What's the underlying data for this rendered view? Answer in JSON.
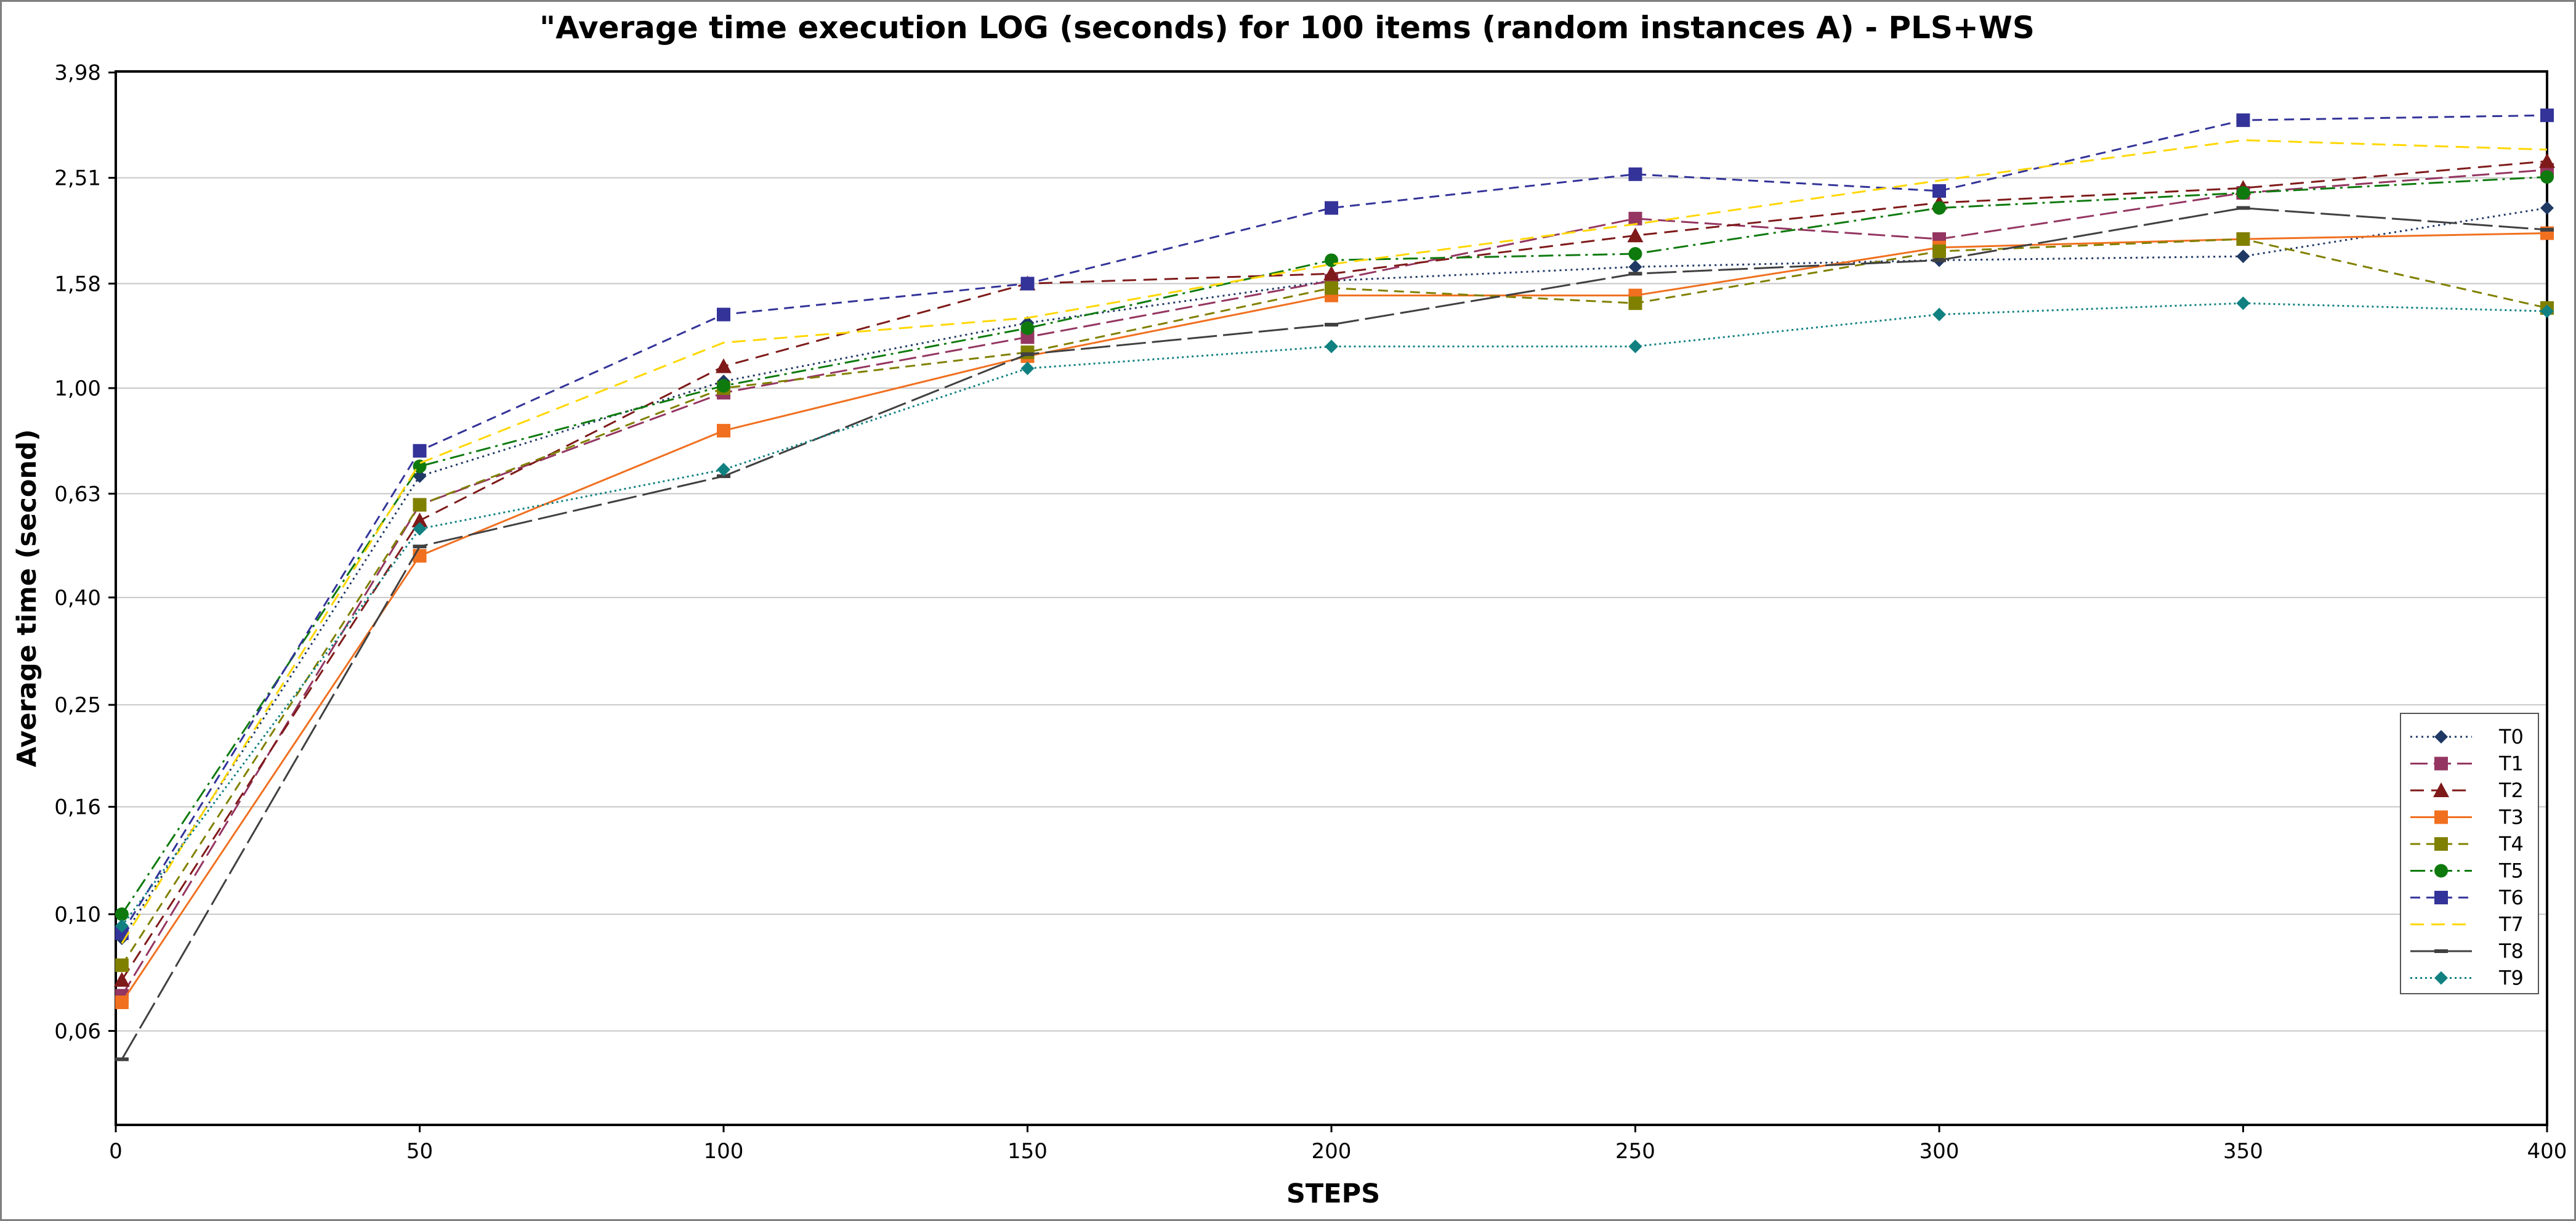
{
  "chart_data": {
    "type": "line",
    "title": "\"Average time execution LOG (seconds) for 100 items (random instances A) - PLS+WS",
    "xlabel": "STEPS",
    "ylabel": "Average time (second)",
    "y_scale": "log",
    "xlim": [
      0,
      400
    ],
    "x_ticks": [
      "0",
      "50",
      "100",
      "150",
      "200",
      "250",
      "300",
      "350",
      "400"
    ],
    "y_ticks": [
      "3,98",
      "2,51",
      "1,58",
      "1,00",
      "0,63",
      "0,40",
      "0,25",
      "0,16",
      "0,10",
      "0,06"
    ],
    "y_tick_values": [
      3.98,
      2.51,
      1.58,
      1.0,
      0.63,
      0.4,
      0.25,
      0.16,
      0.1,
      0.06
    ],
    "grid": true,
    "legend_position": "right",
    "x": [
      1,
      50,
      100,
      150,
      200,
      250,
      300,
      350,
      400
    ],
    "series": [
      {
        "name": "T0",
        "color": "#1f3864",
        "dash": "3,6",
        "marker": "diamond",
        "values": [
          0.09,
          0.68,
          1.03,
          1.33,
          1.6,
          1.7,
          1.75,
          1.78,
          2.2
        ]
      },
      {
        "name": "T1",
        "color": "#943661",
        "dash": "28,10",
        "marker": "square",
        "values": [
          0.07,
          0.6,
          0.98,
          1.25,
          1.6,
          2.1,
          1.92,
          2.35,
          2.6
        ]
      },
      {
        "name": "T2",
        "color": "#7f1a1a",
        "dash": "22,12",
        "marker": "triangle",
        "values": [
          0.075,
          0.56,
          1.1,
          1.58,
          1.65,
          1.95,
          2.25,
          2.4,
          2.7
        ]
      },
      {
        "name": "T3",
        "color": "#f07020",
        "dash": "",
        "marker": "square",
        "values": [
          0.068,
          0.48,
          0.83,
          1.15,
          1.5,
          1.5,
          1.85,
          1.92,
          1.97
        ]
      },
      {
        "name": "T4",
        "color": "#808000",
        "dash": "16,10",
        "marker": "square",
        "values": [
          0.08,
          0.6,
          1.0,
          1.17,
          1.55,
          1.45,
          1.82,
          1.92,
          1.42
        ]
      },
      {
        "name": "T5",
        "color": "#0e7a0e",
        "dash": "24,8,4,8",
        "marker": "circle",
        "values": [
          0.1,
          0.71,
          1.01,
          1.3,
          1.75,
          1.8,
          2.2,
          2.35,
          2.52
        ]
      },
      {
        "name": "T6",
        "color": "#333399",
        "dash": "16,10",
        "marker": "square",
        "values": [
          0.092,
          0.76,
          1.38,
          1.58,
          2.2,
          2.55,
          2.37,
          3.23,
          3.3
        ]
      },
      {
        "name": "T7",
        "color": "#ffd700",
        "dash": "22,12",
        "marker": "none",
        "values": [
          0.088,
          0.72,
          1.22,
          1.36,
          1.72,
          2.05,
          2.48,
          2.96,
          2.84
        ]
      },
      {
        "name": "T8",
        "color": "#404040",
        "dash": "48,10",
        "marker": "dash",
        "values": [
          0.053,
          0.5,
          0.68,
          1.16,
          1.32,
          1.65,
          1.75,
          2.2,
          2.0
        ]
      },
      {
        "name": "T9",
        "color": "#108080",
        "dash": "3,5",
        "marker": "diamond",
        "values": [
          0.095,
          0.54,
          0.7,
          1.09,
          1.2,
          1.2,
          1.38,
          1.45,
          1.4
        ]
      }
    ]
  }
}
